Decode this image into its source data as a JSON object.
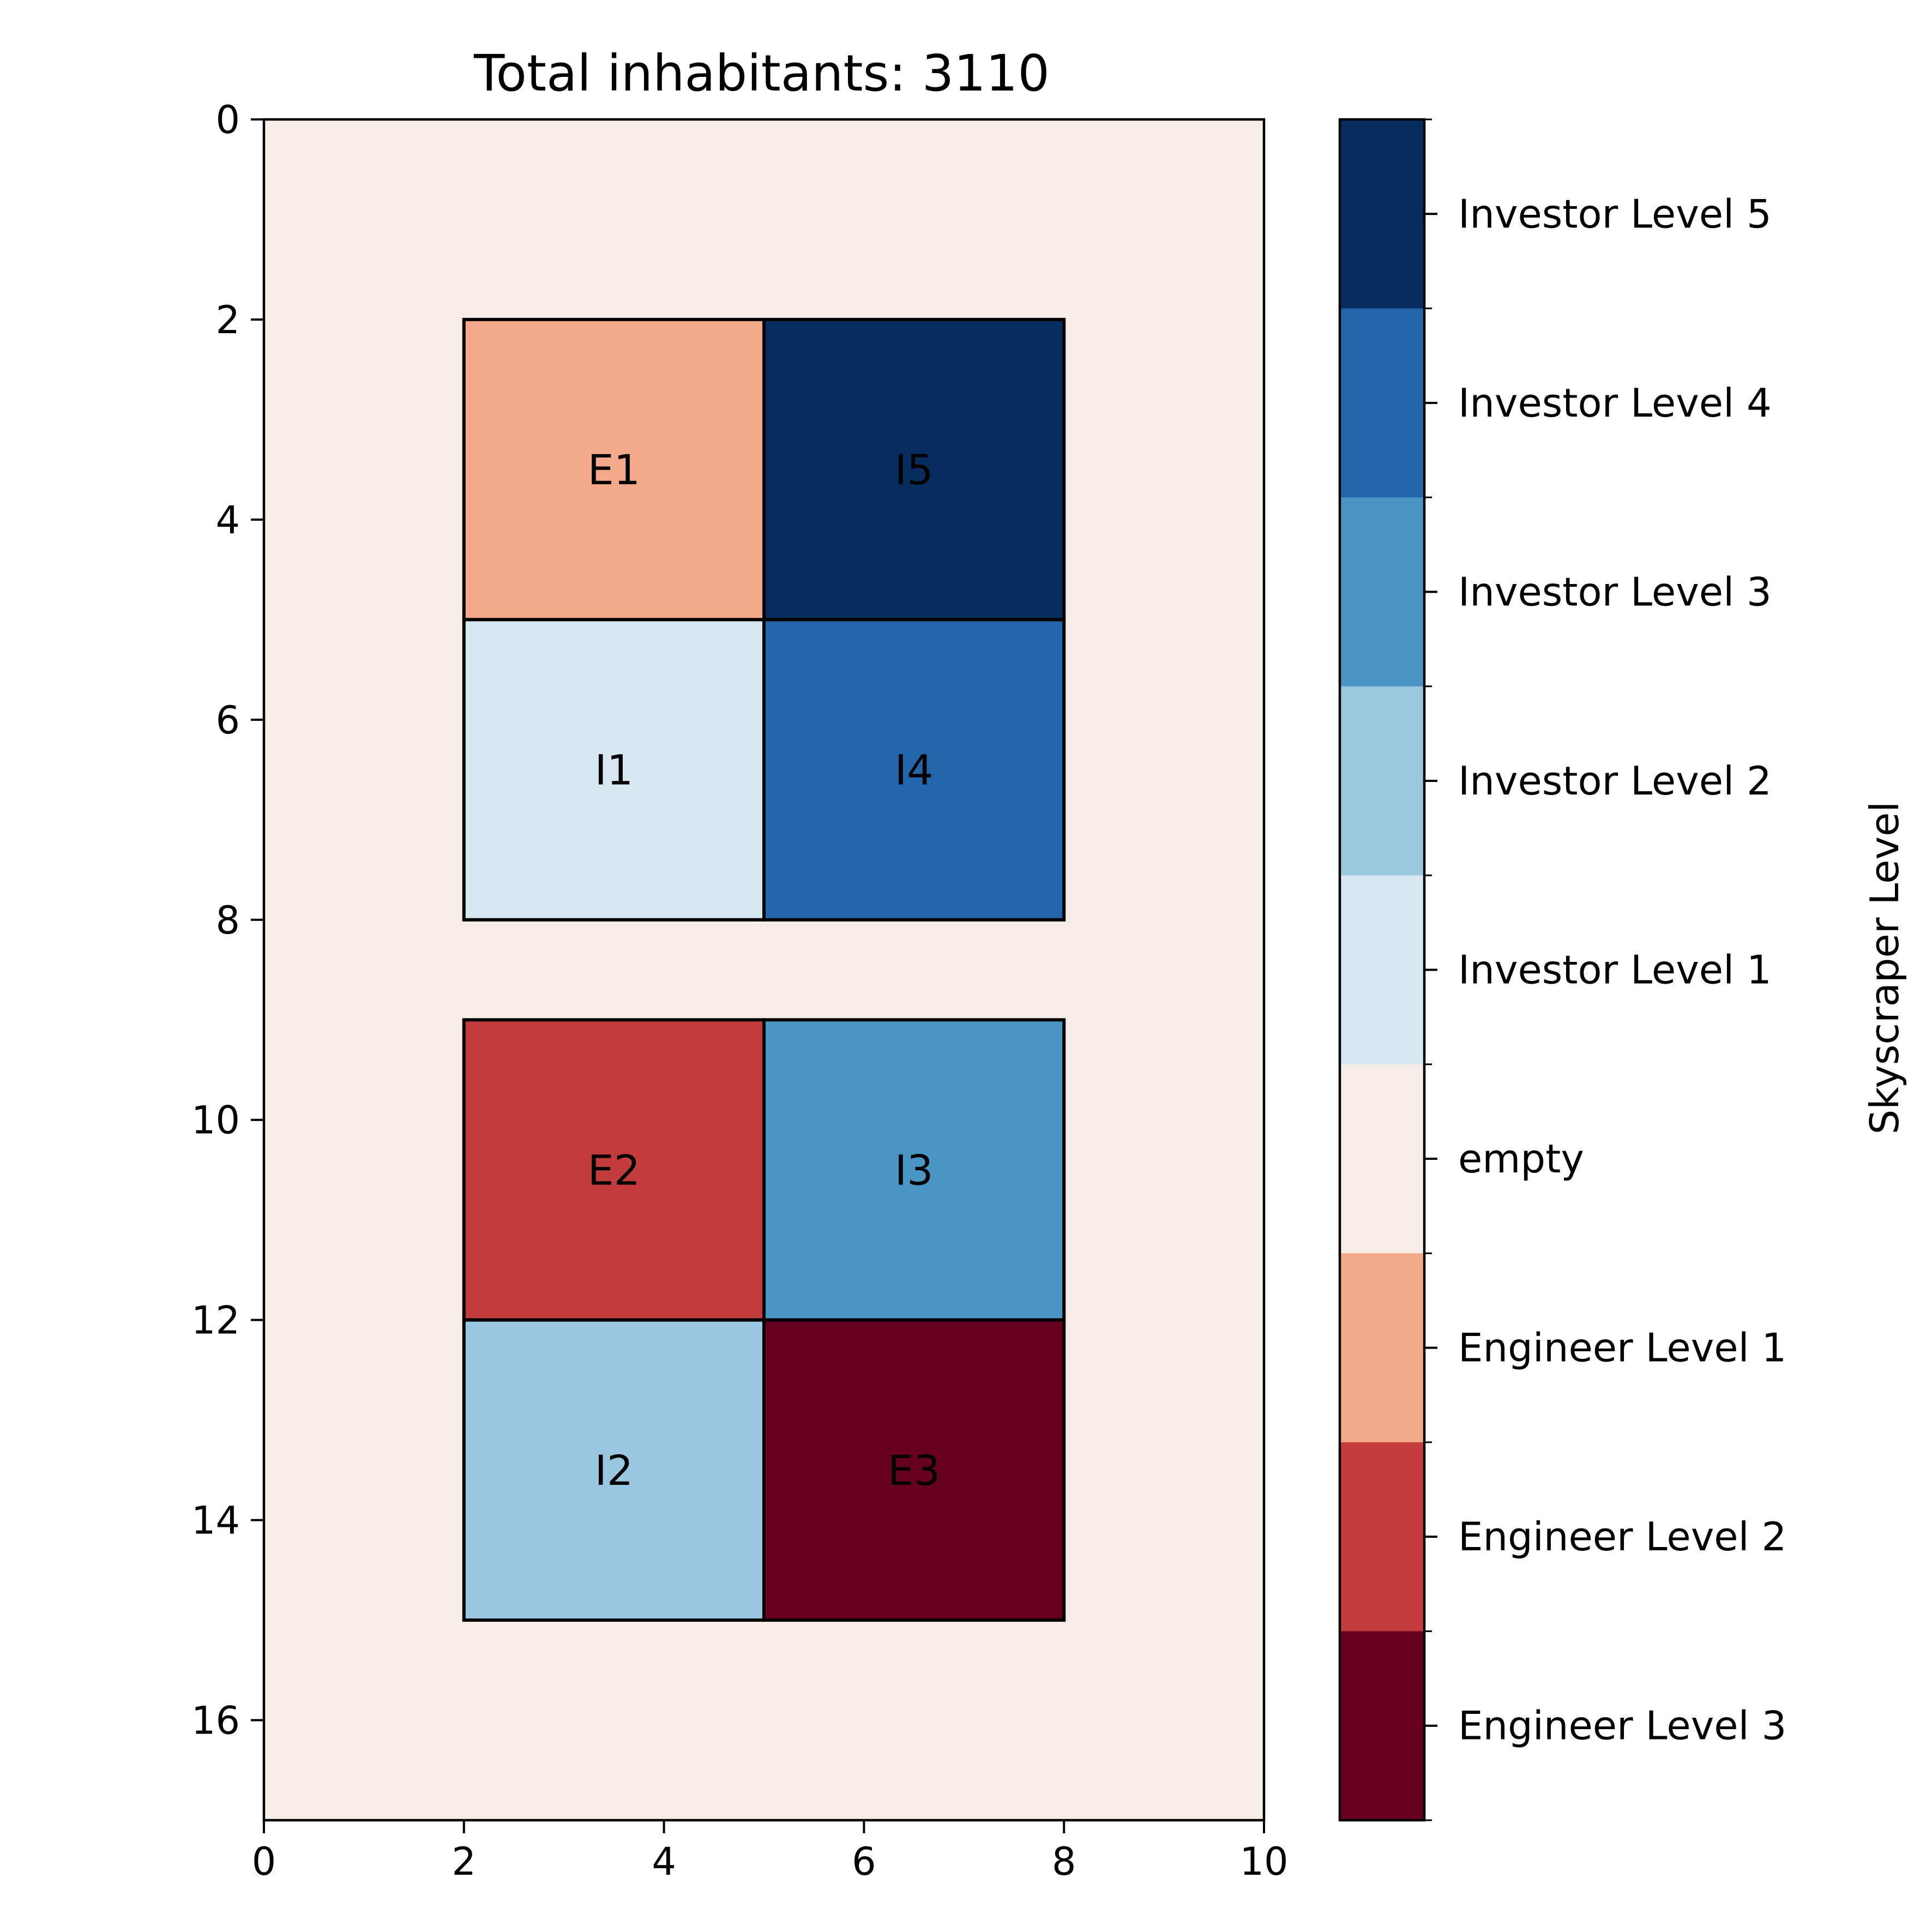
{
  "chart_data": {
    "type": "heatmap",
    "title": "Total inhabitants: 3110",
    "xlim": [
      0,
      10
    ],
    "ylim": [
      0,
      17
    ],
    "y_inverted": true,
    "x_ticks": [
      0,
      2,
      4,
      6,
      8,
      10
    ],
    "y_ticks": [
      0,
      2,
      4,
      6,
      8,
      10,
      12,
      14,
      16
    ],
    "background_color": "#f7ece7",
    "cells": [
      {
        "label": "E1",
        "x": [
          2,
          5
        ],
        "y": [
          2,
          5
        ],
        "color": "#f4a98a"
      },
      {
        "label": "I5",
        "x": [
          5,
          8
        ],
        "y": [
          2,
          5
        ],
        "color": "#072d5f"
      },
      {
        "label": "I1",
        "x": [
          2,
          5
        ],
        "y": [
          5,
          8
        ],
        "color": "#d6e7f1"
      },
      {
        "label": "I4",
        "x": [
          5,
          8
        ],
        "y": [
          5,
          8
        ],
        "color": "#2265ab"
      },
      {
        "label": "E2",
        "x": [
          2,
          5
        ],
        "y": [
          9,
          12
        ],
        "color": "#c33c3c"
      },
      {
        "label": "I3",
        "x": [
          5,
          8
        ],
        "y": [
          9,
          12
        ],
        "color": "#4996c5"
      },
      {
        "label": "I2",
        "x": [
          2,
          5
        ],
        "y": [
          12,
          15
        ],
        "color": "#99c7df"
      },
      {
        "label": "E3",
        "x": [
          5,
          8
        ],
        "y": [
          12,
          15
        ],
        "color": "#67001f"
      }
    ],
    "colorbar": {
      "label": "Skyscraper Level",
      "levels": [
        {
          "name": "Investor Level 5",
          "color": "#072d5f"
        },
        {
          "name": "Investor Level 4",
          "color": "#2265ab"
        },
        {
          "name": "Investor Level 3",
          "color": "#4996c5"
        },
        {
          "name": "Investor Level 2",
          "color": "#9dc9e0"
        },
        {
          "name": "Investor Level 1",
          "color": "#d6e7f1"
        },
        {
          "name": "empty",
          "color": "#f7ece7"
        },
        {
          "name": "Engineer Level 1",
          "color": "#f4a98a"
        },
        {
          "name": "Engineer Level 2",
          "color": "#c33c3c"
        },
        {
          "name": "Engineer Level 3",
          "color": "#67001f"
        }
      ]
    }
  }
}
